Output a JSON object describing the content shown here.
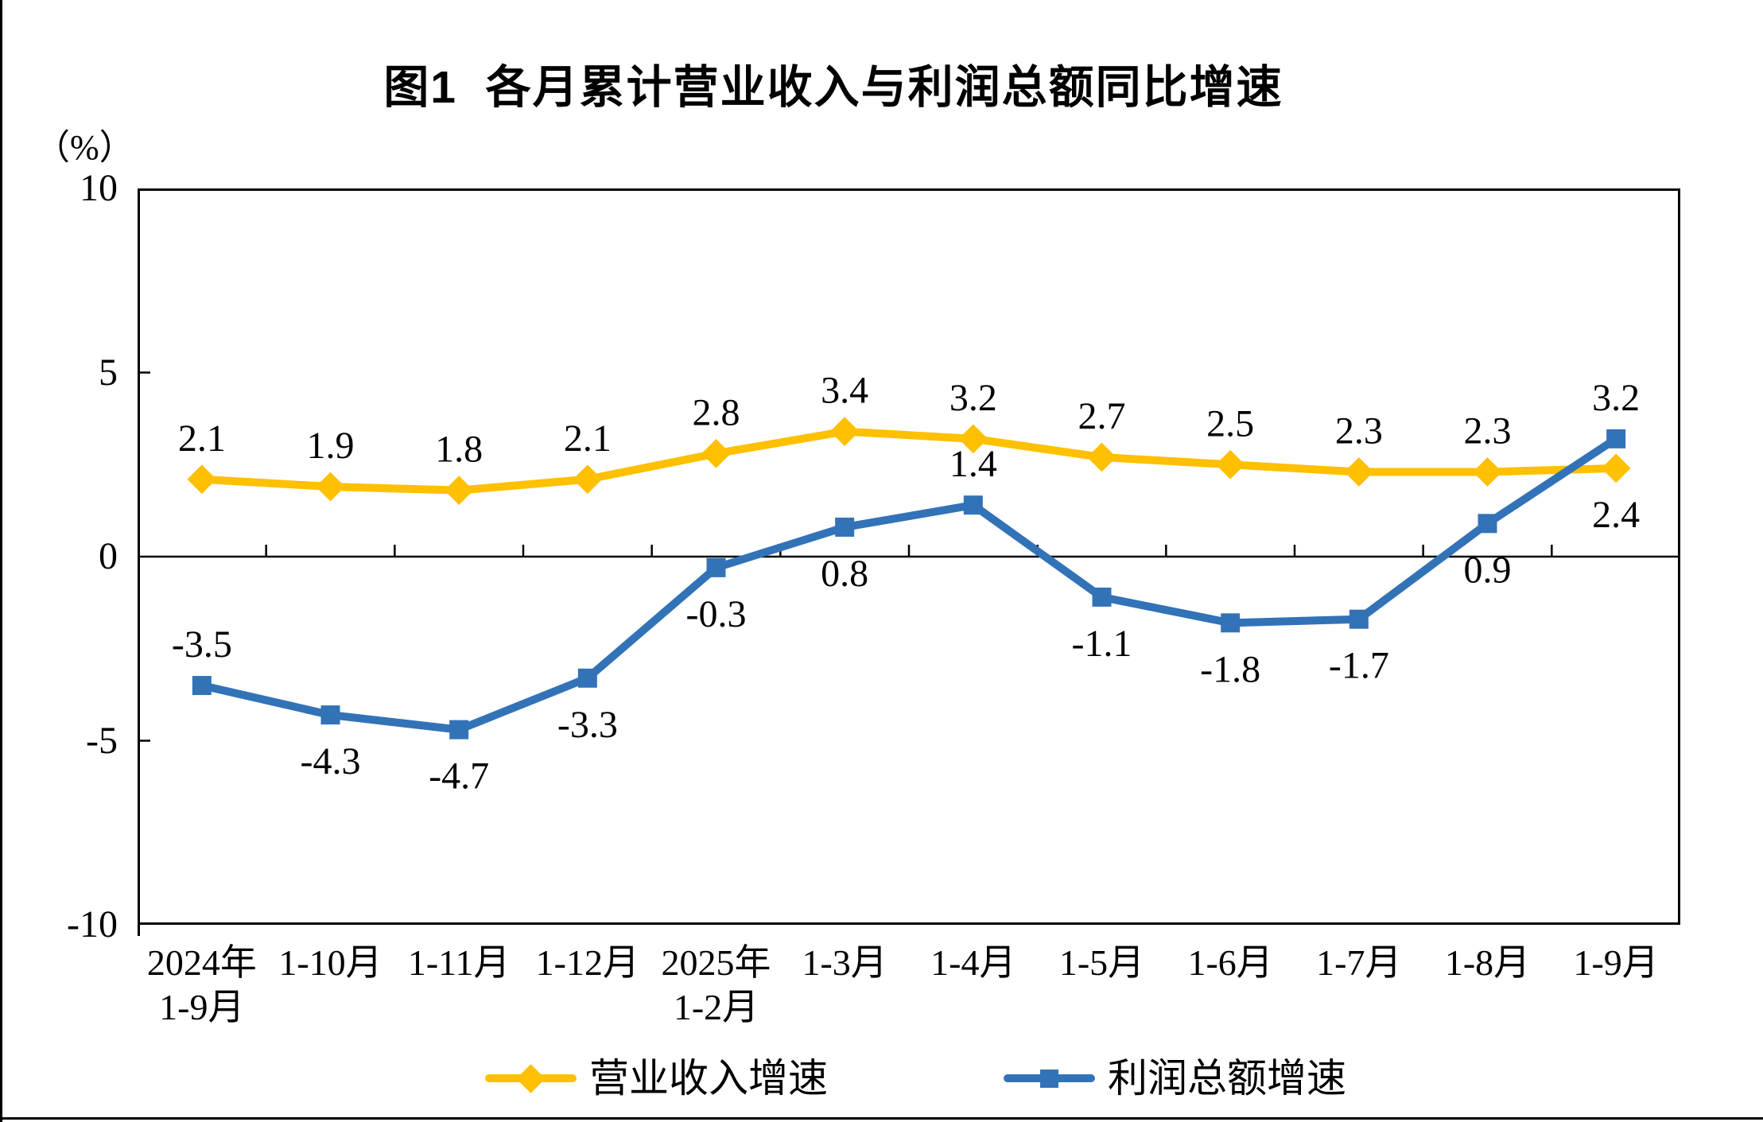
{
  "page": {
    "title": "图1  各月累计营业收入与利润总额同比增速",
    "unit_label": "（%）"
  },
  "chart_data": {
    "type": "line",
    "title": "图1  各月累计营业收入与利润总额同比增速",
    "ylabel": "（%）",
    "xlabel": "",
    "ylim": [
      -10,
      10
    ],
    "yticks": [
      10,
      5,
      0,
      -5,
      -10
    ],
    "grid": "none",
    "legend_position": "bottom",
    "axis_color": "#000000",
    "categories": [
      [
        "2024年",
        "1-9月"
      ],
      [
        "1-10月"
      ],
      [
        "1-11月"
      ],
      [
        "1-12月"
      ],
      [
        "2025年",
        "1-2月"
      ],
      [
        "1-3月"
      ],
      [
        "1-4月"
      ],
      [
        "1-5月"
      ],
      [
        "1-6月"
      ],
      [
        "1-7月"
      ],
      [
        "1-8月"
      ],
      [
        "1-9月"
      ]
    ],
    "series": [
      {
        "name": "营业收入增速",
        "color": "#FFC000",
        "marker": "diamond",
        "values": [
          2.1,
          1.9,
          1.8,
          2.1,
          2.8,
          3.4,
          3.2,
          2.7,
          2.5,
          2.3,
          2.3,
          2.4
        ],
        "label_pos": [
          "above",
          "above",
          "above",
          "above",
          "above",
          "above",
          "above",
          "above",
          "above",
          "above",
          "above",
          "below"
        ]
      },
      {
        "name": "利润总额增速",
        "color": "#3273B8",
        "marker": "square",
        "values": [
          -3.5,
          -4.3,
          -4.7,
          -3.3,
          -0.3,
          0.8,
          1.4,
          -1.1,
          -1.8,
          -1.7,
          0.9,
          3.2
        ],
        "label_pos": [
          "above",
          "below",
          "below",
          "below",
          "below",
          "below",
          "above",
          "below",
          "below",
          "below",
          "below",
          "above"
        ]
      }
    ]
  }
}
